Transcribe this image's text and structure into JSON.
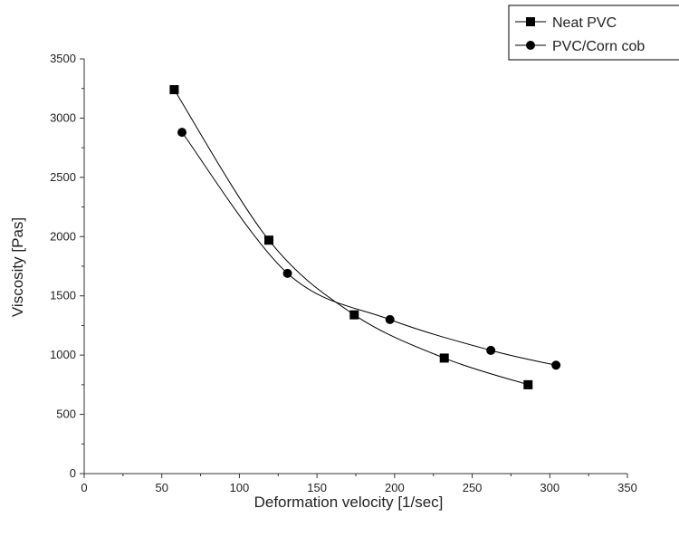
{
  "chart_data": {
    "type": "line",
    "title": "",
    "xlabel": "Deformation velocity [1/sec]",
    "ylabel": "Viscosity [Pas]",
    "xlim": [
      0,
      350
    ],
    "ylim": [
      0,
      3500
    ],
    "xticks": [
      0,
      50,
      100,
      150,
      200,
      250,
      300,
      350
    ],
    "yticks": [
      0,
      500,
      1000,
      1500,
      2000,
      2500,
      3000,
      3500
    ],
    "grid": false,
    "legend_position": "top-right",
    "series": [
      {
        "name": "Neat PVC",
        "marker": "square",
        "color": "#000000",
        "x": [
          58,
          119,
          174,
          232,
          286
        ],
        "y": [
          3240,
          1970,
          1340,
          975,
          750
        ]
      },
      {
        "name": "PVC/Corn cob",
        "marker": "circle",
        "color": "#000000",
        "x": [
          63,
          131,
          197,
          262,
          304
        ],
        "y": [
          2880,
          1690,
          1300,
          1040,
          915
        ]
      }
    ]
  }
}
